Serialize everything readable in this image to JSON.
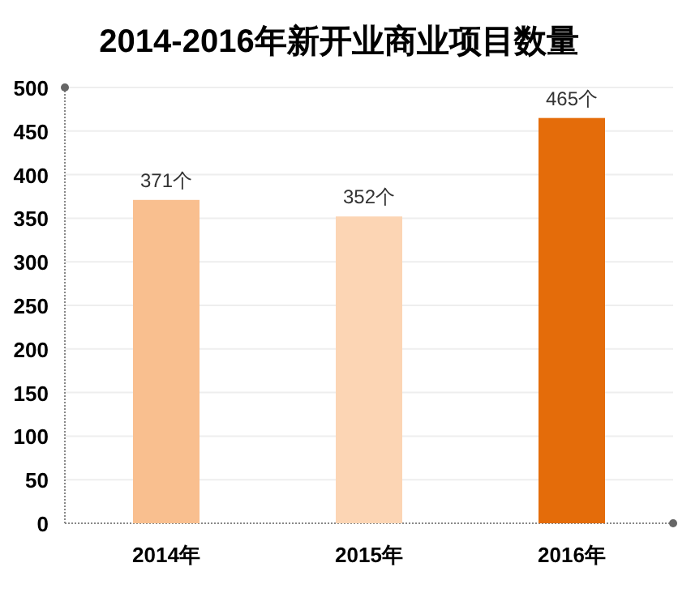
{
  "chart_data": {
    "type": "bar",
    "title": "2014-2016年新开业商业项目数量",
    "categories": [
      "2014年",
      "2015年",
      "2016年"
    ],
    "values": [
      371,
      352,
      465
    ],
    "colors": [
      "#f9bf8f",
      "#fcd5b4",
      "#e46c0a"
    ],
    "value_labels": [
      "371个",
      "352个",
      "465个"
    ],
    "ylim": [
      0,
      500
    ],
    "yticks": [
      0,
      50,
      100,
      150,
      200,
      250,
      300,
      350,
      400,
      450,
      500
    ],
    "grid": "y"
  }
}
